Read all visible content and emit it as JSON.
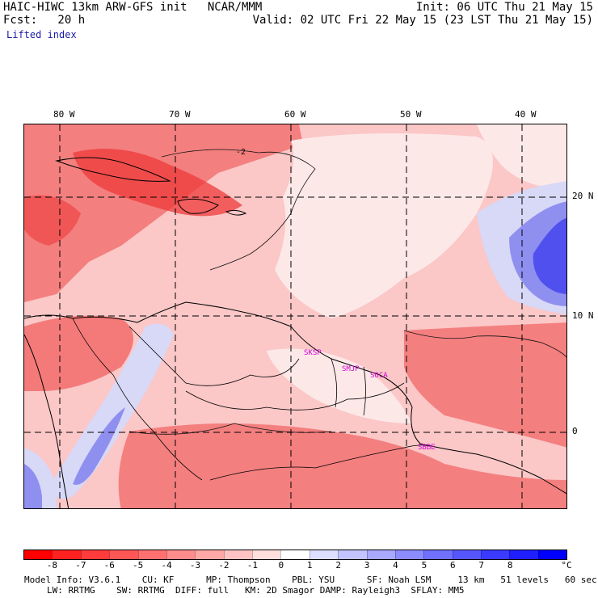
{
  "header": {
    "model_line": "HAIC-HIWC 13km ARW-GFS init   NCAR/MMM",
    "fcst_line": "Fcst:   20 h",
    "field": "Lifted index",
    "init": "Init: 06 UTC Thu 21 May 15",
    "valid": "Valid: 02 UTC Fri 22 May 15 (23 LST Thu 21 May 15)"
  },
  "map": {
    "lon_labels": [
      "80 W",
      "70 W",
      "60 W",
      "50 W",
      "40 W"
    ],
    "lat_labels": [
      "20 N",
      "10 N",
      "0"
    ],
    "contour_labels": [
      "-2"
    ],
    "station_labels": [
      "SKSP",
      "SMJP",
      "SOCA",
      "SBBE"
    ],
    "colors": {
      "strong_neg": "#ef3a3a",
      "mid_neg": "#f47f7f",
      "weak_neg": "#fbc7c7",
      "neutral": "#fde8e8",
      "weak_pos": "#d8d8f7",
      "mid_pos": "#8f8ff0",
      "strong_pos": "#4545ee"
    }
  },
  "colorbar": {
    "colors": [
      "#ff0000",
      "#ff2020",
      "#ff3b3b",
      "#ff5656",
      "#ff7171",
      "#ff8c8c",
      "#ffa8a8",
      "#ffc3c3",
      "#ffdede",
      "#ffffff",
      "#dedeff",
      "#c3c3ff",
      "#a8a8ff",
      "#8c8cff",
      "#7171ff",
      "#5656ff",
      "#3b3bff",
      "#2020ff",
      "#0000ff"
    ],
    "tick_labels": [
      "-8",
      "-7",
      "-6",
      "-5",
      "-4",
      "-3",
      "-2",
      "-1",
      "0",
      "1",
      "2",
      "3",
      "4",
      "5",
      "6",
      "7",
      "8"
    ],
    "unit": "°C"
  },
  "model_info": {
    "line1": "Model Info: V3.6.1    CU: KF      MP: Thompson    PBL: YSU      SF: Noah LSM     13 km   51 levels   60 sec",
    "line2": "LW: RRTMG    SW: RRTMG  DIFF: full   KM: 2D Smagor DAMP: Rayleigh3  SFLAY: MM5"
  }
}
